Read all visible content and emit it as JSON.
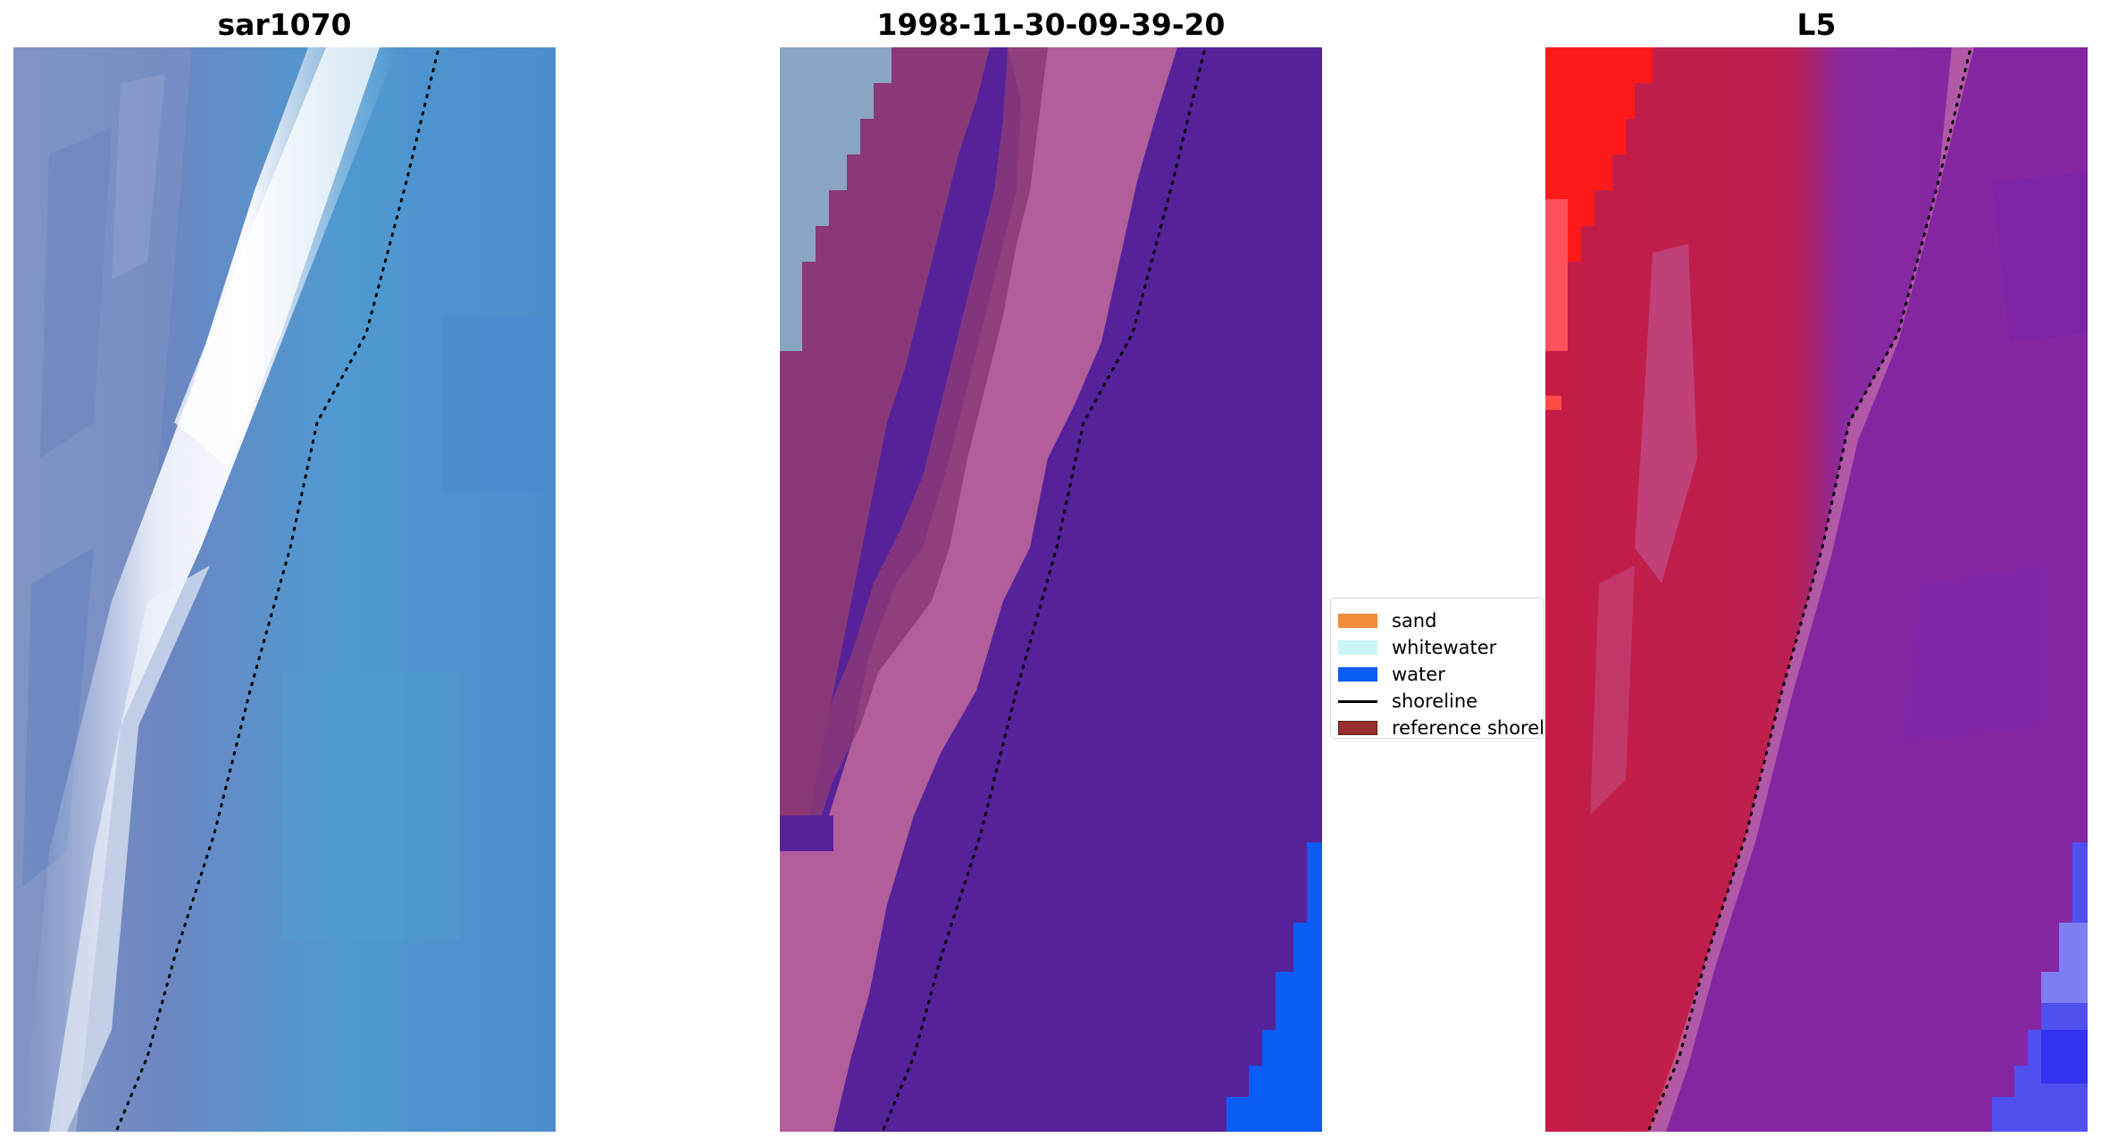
{
  "panels": [
    {
      "title": "sar1070"
    },
    {
      "title": "1998-11-30-09-39-20"
    },
    {
      "title": "L5"
    }
  ],
  "legend": {
    "entries": [
      {
        "label": "sand",
        "kind": "patch",
        "color": "#f48c3c"
      },
      {
        "label": "whitewater",
        "kind": "patch",
        "color": "#ccf5f5"
      },
      {
        "label": "water",
        "kind": "patch",
        "color": "#0a5cf5"
      },
      {
        "label": "shoreline",
        "kind": "line",
        "color": "#000000"
      },
      {
        "label": "reference shoreline",
        "kind": "patch",
        "color": "#9a2e2e"
      }
    ]
  },
  "colors": {
    "rgb_water": "#4e9cd0",
    "rgb_whitewater": "#f4f4fa",
    "rgb_beach": "#7e92c2",
    "class_background": "#55229a",
    "class_whitewater_band": "#b25e9a",
    "class_pink_band": "#8b3878",
    "class_water": "#0a5cf5",
    "class_grey_sand": "#8aa4c4",
    "index_red": "#c41c46",
    "index_bright_red": "#ff1a1a",
    "index_purple": "#8a2aa0",
    "index_blue": "#5050f0"
  }
}
